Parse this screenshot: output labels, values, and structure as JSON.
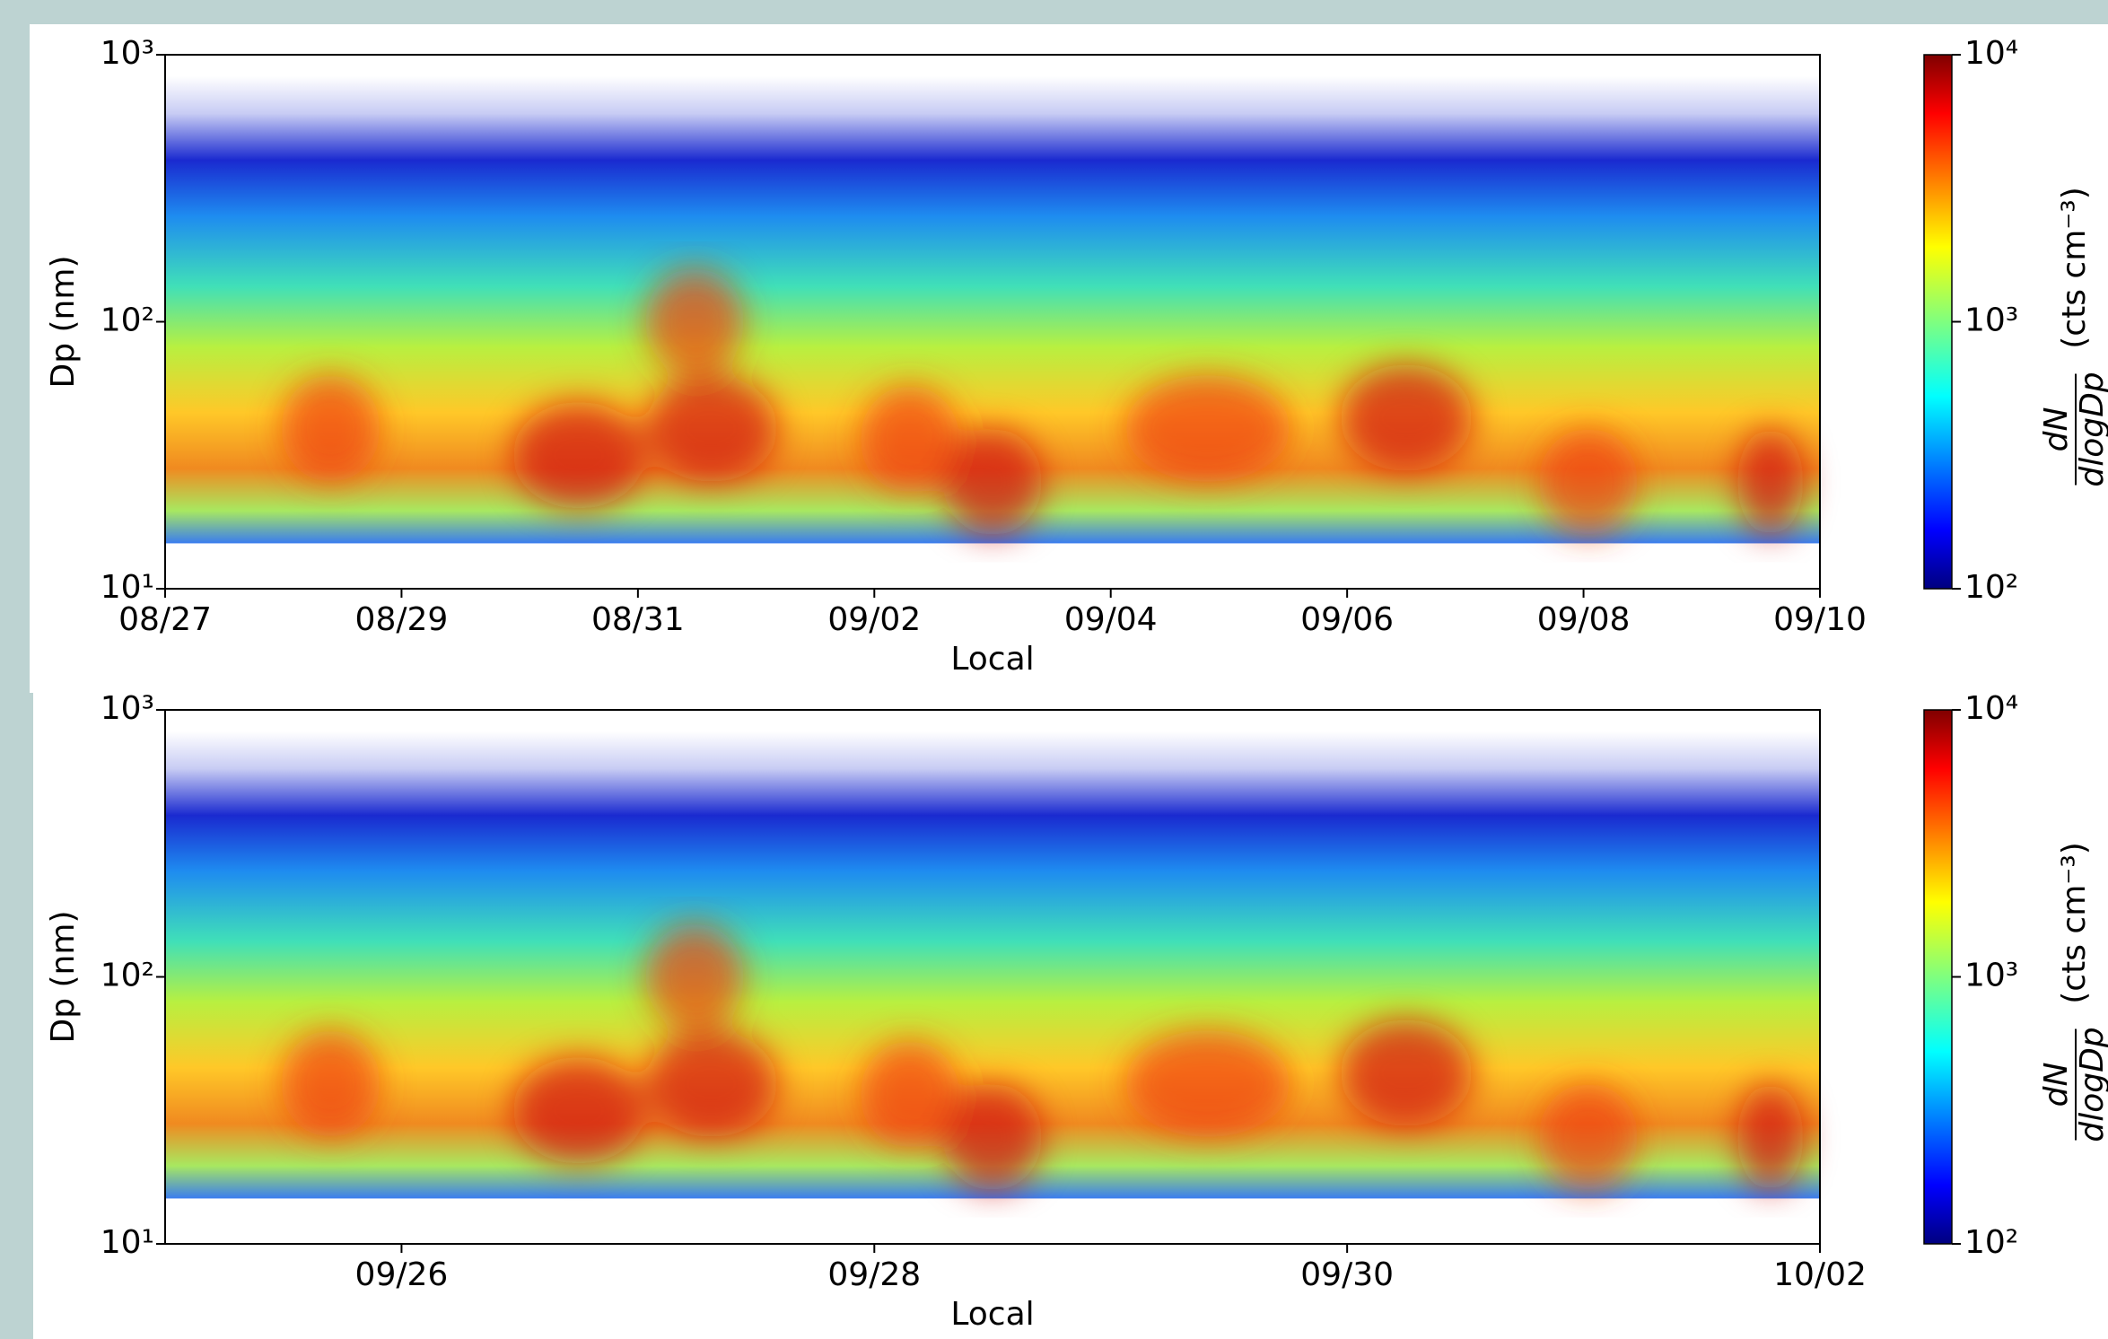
{
  "chart_data": [
    {
      "type": "heatmap",
      "x_label": "Local",
      "y_label": "Dp (nm)",
      "log_y": true,
      "xlim": [
        "08/27",
        "09/10"
      ],
      "xticks": [
        "08/27",
        "08/29",
        "08/31",
        "09/02",
        "09/04",
        "09/06",
        "09/08",
        "09/10"
      ],
      "ylim": [
        10,
        1000
      ],
      "yticks": [
        {
          "value": 10,
          "label": "10¹"
        },
        {
          "value": 100,
          "label": "10²"
        },
        {
          "value": 1000,
          "label": "10³"
        }
      ],
      "colormap": "jet",
      "clim": [
        100,
        10000
      ],
      "cticks": [
        {
          "value": 100,
          "label": "10²"
        },
        {
          "value": 1000,
          "label": "10³"
        },
        {
          "value": 10000,
          "label": "10⁴"
        }
      ],
      "colorbar_label": {
        "numerator": "dN",
        "denominator": "dlogDp",
        "unit": "(cts cm⁻³)"
      }
    },
    {
      "type": "heatmap",
      "x_label": "Local",
      "y_label": "Dp (nm)",
      "log_y": true,
      "xlim": [
        "09/25",
        "10/02"
      ],
      "xticks": [
        "09/26",
        "09/28",
        "09/30",
        "10/02"
      ],
      "ylim": [
        10,
        1000
      ],
      "yticks": [
        {
          "value": 10,
          "label": "10¹"
        },
        {
          "value": 100,
          "label": "10²"
        },
        {
          "value": 1000,
          "label": "10³"
        }
      ],
      "colormap": "jet",
      "clim": [
        100,
        10000
      ],
      "cticks": [
        {
          "value": 100,
          "label": "10²"
        },
        {
          "value": 1000,
          "label": "10³"
        },
        {
          "value": 10000,
          "label": "10⁴"
        }
      ],
      "colorbar_label": {
        "numerator": "dN",
        "denominator": "dlogDp",
        "unit": "(cts cm⁻³)"
      }
    }
  ]
}
